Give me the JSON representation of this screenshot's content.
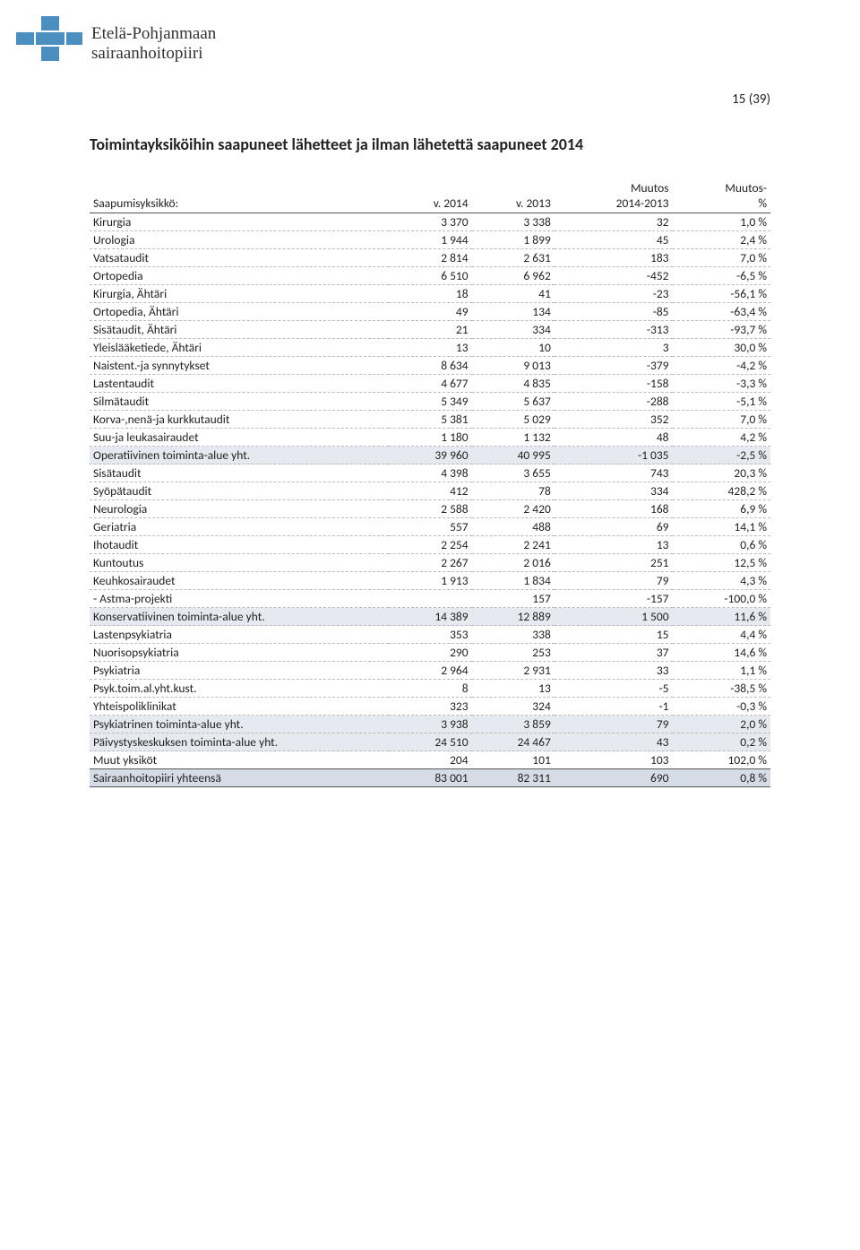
{
  "header": {
    "org_line1": "Etelä-Pohjanmaan",
    "org_line2": "sairaanhoitopiiri",
    "page_number": "15 (39)"
  },
  "section": {
    "title": "Toimintayksiköihin saapuneet lähetteet ja ilman lähetettä saapuneet 2014"
  },
  "table": {
    "head": {
      "c0": "Saapumisyksikkö:",
      "c1": "v. 2014",
      "c2": "v. 2013",
      "c3_top": "Muutos",
      "c3_bot": "2014-2013",
      "c4_top": "Muutos-",
      "c4_bot": "%"
    },
    "rows": [
      {
        "label": "Kirurgia",
        "a": "3 370",
        "b": "3 338",
        "c": "32",
        "d": "1,0 %",
        "cls": ""
      },
      {
        "label": "Urologia",
        "a": "1 944",
        "b": "1 899",
        "c": "45",
        "d": "2,4 %",
        "cls": ""
      },
      {
        "label": "Vatsataudit",
        "a": "2 814",
        "b": "2 631",
        "c": "183",
        "d": "7,0 %",
        "cls": ""
      },
      {
        "label": "Ortopedia",
        "a": "6 510",
        "b": "6 962",
        "c": "-452",
        "d": "-6,5 %",
        "cls": ""
      },
      {
        "label": "Kirurgia, Ähtäri",
        "a": "18",
        "b": "41",
        "c": "-23",
        "d": "-56,1 %",
        "cls": ""
      },
      {
        "label": "Ortopedia, Ähtäri",
        "a": "49",
        "b": "134",
        "c": "-85",
        "d": "-63,4 %",
        "cls": ""
      },
      {
        "label": "Sisätaudit, Ähtäri",
        "a": "21",
        "b": "334",
        "c": "-313",
        "d": "-93,7 %",
        "cls": ""
      },
      {
        "label": "Yleislääketiede, Ähtäri",
        "a": "13",
        "b": "10",
        "c": "3",
        "d": "30,0 %",
        "cls": ""
      },
      {
        "label": "Naistent.-ja synnytykset",
        "a": "8 634",
        "b": "9 013",
        "c": "-379",
        "d": "-4,2 %",
        "cls": ""
      },
      {
        "label": "Lastentaudit",
        "a": "4 677",
        "b": "4 835",
        "c": "-158",
        "d": "-3,3 %",
        "cls": ""
      },
      {
        "label": "Silmätaudit",
        "a": "5 349",
        "b": "5 637",
        "c": "-288",
        "d": "-5,1 %",
        "cls": ""
      },
      {
        "label": "Korva-,nenä-ja kurkkutaudit",
        "a": "5 381",
        "b": "5 029",
        "c": "352",
        "d": "7,0 %",
        "cls": ""
      },
      {
        "label": "Suu-ja leukasairaudet",
        "a": "1 180",
        "b": "1 132",
        "c": "48",
        "d": "4,2 %",
        "cls": ""
      },
      {
        "label": "Operatiivinen toiminta-alue yht.",
        "a": "39 960",
        "b": "40 995",
        "c": "-1 035",
        "d": "-2,5 %",
        "cls": "subtotal"
      },
      {
        "label": "Sisätaudit",
        "a": "4 398",
        "b": "3 655",
        "c": "743",
        "d": "20,3 %",
        "cls": ""
      },
      {
        "label": "Syöpätaudit",
        "a": "412",
        "b": "78",
        "c": "334",
        "d": "428,2 %",
        "cls": ""
      },
      {
        "label": "Neurologia",
        "a": "2 588",
        "b": "2 420",
        "c": "168",
        "d": "6,9 %",
        "cls": ""
      },
      {
        "label": "Geriatria",
        "a": "557",
        "b": "488",
        "c": "69",
        "d": "14,1 %",
        "cls": ""
      },
      {
        "label": "Ihotaudit",
        "a": "2 254",
        "b": "2 241",
        "c": "13",
        "d": "0,6 %",
        "cls": ""
      },
      {
        "label": "Kuntoutus",
        "a": "2 267",
        "b": "2 016",
        "c": "251",
        "d": "12,5 %",
        "cls": ""
      },
      {
        "label": "Keuhkosairaudet",
        "a": "1 913",
        "b": "1 834",
        "c": "79",
        "d": "4,3 %",
        "cls": ""
      },
      {
        "label": " - Astma-projekti",
        "a": "",
        "b": "157",
        "c": "-157",
        "d": "-100,0 %",
        "cls": ""
      },
      {
        "label": "Konservatiivinen toiminta-alue yht.",
        "a": "14 389",
        "b": "12 889",
        "c": "1 500",
        "d": "11,6 %",
        "cls": "subtotal"
      },
      {
        "label": "Lastenpsykiatria",
        "a": "353",
        "b": "338",
        "c": "15",
        "d": "4,4 %",
        "cls": ""
      },
      {
        "label": "Nuorisopsykiatria",
        "a": "290",
        "b": "253",
        "c": "37",
        "d": "14,6 %",
        "cls": ""
      },
      {
        "label": "Psykiatria",
        "a": "2 964",
        "b": "2 931",
        "c": "33",
        "d": "1,1 %",
        "cls": ""
      },
      {
        "label": "Psyk.toim.al.yht.kust.",
        "a": "8",
        "b": "13",
        "c": "-5",
        "d": "-38,5 %",
        "cls": ""
      },
      {
        "label": "Yhteispoliklinikat",
        "a": "323",
        "b": "324",
        "c": "-1",
        "d": "-0,3 %",
        "cls": ""
      },
      {
        "label": "Psykiatrinen toiminta-alue yht.",
        "a": "3 938",
        "b": "3 859",
        "c": "79",
        "d": "2,0 %",
        "cls": "subtotal"
      },
      {
        "label": "Päivystyskeskuksen toiminta-alue yht.",
        "a": "24 510",
        "b": "24 467",
        "c": "43",
        "d": "0,2 %",
        "cls": "subtotal"
      },
      {
        "label": "Muut yksiköt",
        "a": "204",
        "b": "101",
        "c": "103",
        "d": "102,0 %",
        "cls": ""
      },
      {
        "label": "Sairaanhoitopiiri yhteensä",
        "a": "83 001",
        "b": "82 311",
        "c": "690",
        "d": "0,8 %",
        "cls": "total"
      }
    ]
  },
  "style": {
    "logo_color": "#4a8fc0",
    "subtotal_bg": "#e6eaf0",
    "total_bg": "#d6dce6"
  }
}
